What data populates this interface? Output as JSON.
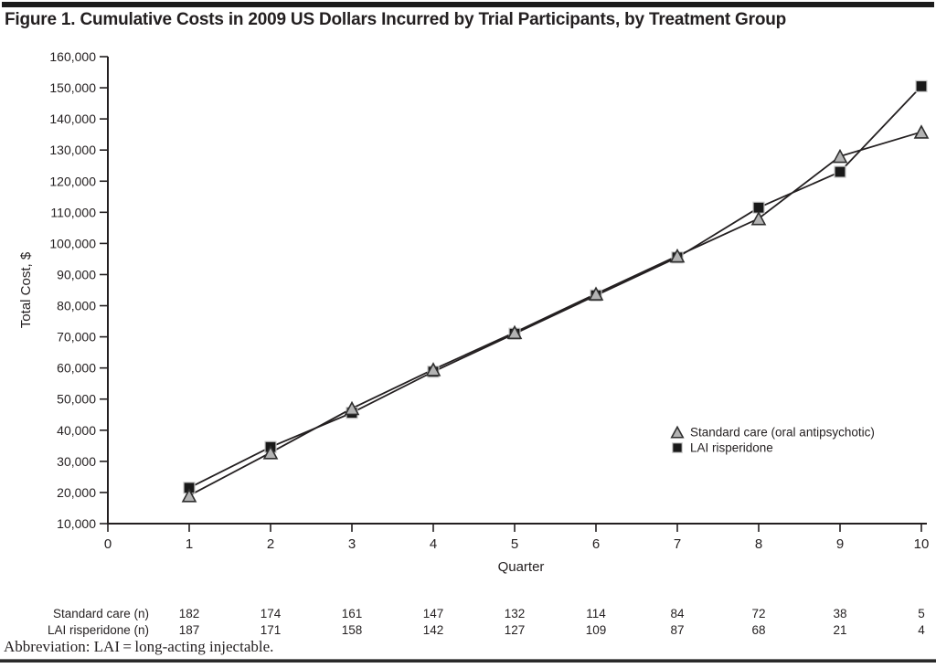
{
  "page": {
    "title": "Figure 1. Cumulative Costs in 2009 US Dollars Incurred by Trial Participants, by Treatment Group",
    "abbreviation_note": "Abbreviation: LAI = long-acting injectable."
  },
  "chart_data": {
    "type": "line",
    "title": "Figure 1. Cumulative Costs in 2009 US Dollars Incurred by Trial Participants, by Treatment Group",
    "xlabel": "Quarter",
    "ylabel": "Total Cost, $",
    "x": [
      1,
      2,
      3,
      4,
      5,
      6,
      7,
      8,
      9,
      10
    ],
    "xlim": [
      0,
      10
    ],
    "ylim": [
      10000,
      160000
    ],
    "x_tick_labels": [
      "0",
      "1",
      "2",
      "3",
      "4",
      "5",
      "6",
      "7",
      "8",
      "9",
      "10"
    ],
    "y_tick_labels": [
      "10,000",
      "20,000",
      "30,000",
      "40,000",
      "50,000",
      "60,000",
      "70,000",
      "80,000",
      "90,000",
      "100,000",
      "110,000",
      "120,000",
      "130,000",
      "140,000",
      "150,000",
      "160,000"
    ],
    "grid": false,
    "legend_position": "right-middle",
    "series": [
      {
        "name": "Standard care (oral antipsychotic)",
        "marker": "triangle",
        "marker_fill": "#b3b3b3",
        "marker_stroke": "#2f2f2f",
        "line_color": "#231f20",
        "values": [
          19000,
          32800,
          47000,
          59500,
          71400,
          83800,
          96000,
          108000,
          128000,
          135800
        ]
      },
      {
        "name": "LAI risperidone",
        "marker": "square",
        "marker_fill": "#191919",
        "marker_stroke": "#c8c8c8",
        "line_color": "#231f20",
        "values": [
          21500,
          34600,
          45600,
          58800,
          71000,
          83300,
          95500,
          111500,
          123000,
          150500
        ]
      }
    ],
    "table": {
      "rows": [
        {
          "label": "Standard care (n)",
          "values": [
            "182",
            "174",
            "161",
            "147",
            "132",
            "114",
            "84",
            "72",
            "38",
            "5"
          ]
        },
        {
          "label": "LAI risperidone (n)",
          "values": [
            "187",
            "171",
            "158",
            "142",
            "127",
            "109",
            "87",
            "68",
            "21",
            "4"
          ]
        }
      ]
    }
  },
  "colors": {
    "axis": "#231f20",
    "text": "#231f20",
    "top_rule": "#1c1c1c",
    "bottom_rule": "#2a2a2a",
    "triangle_fill": "#b3b3b3",
    "square_fill": "#191919"
  }
}
